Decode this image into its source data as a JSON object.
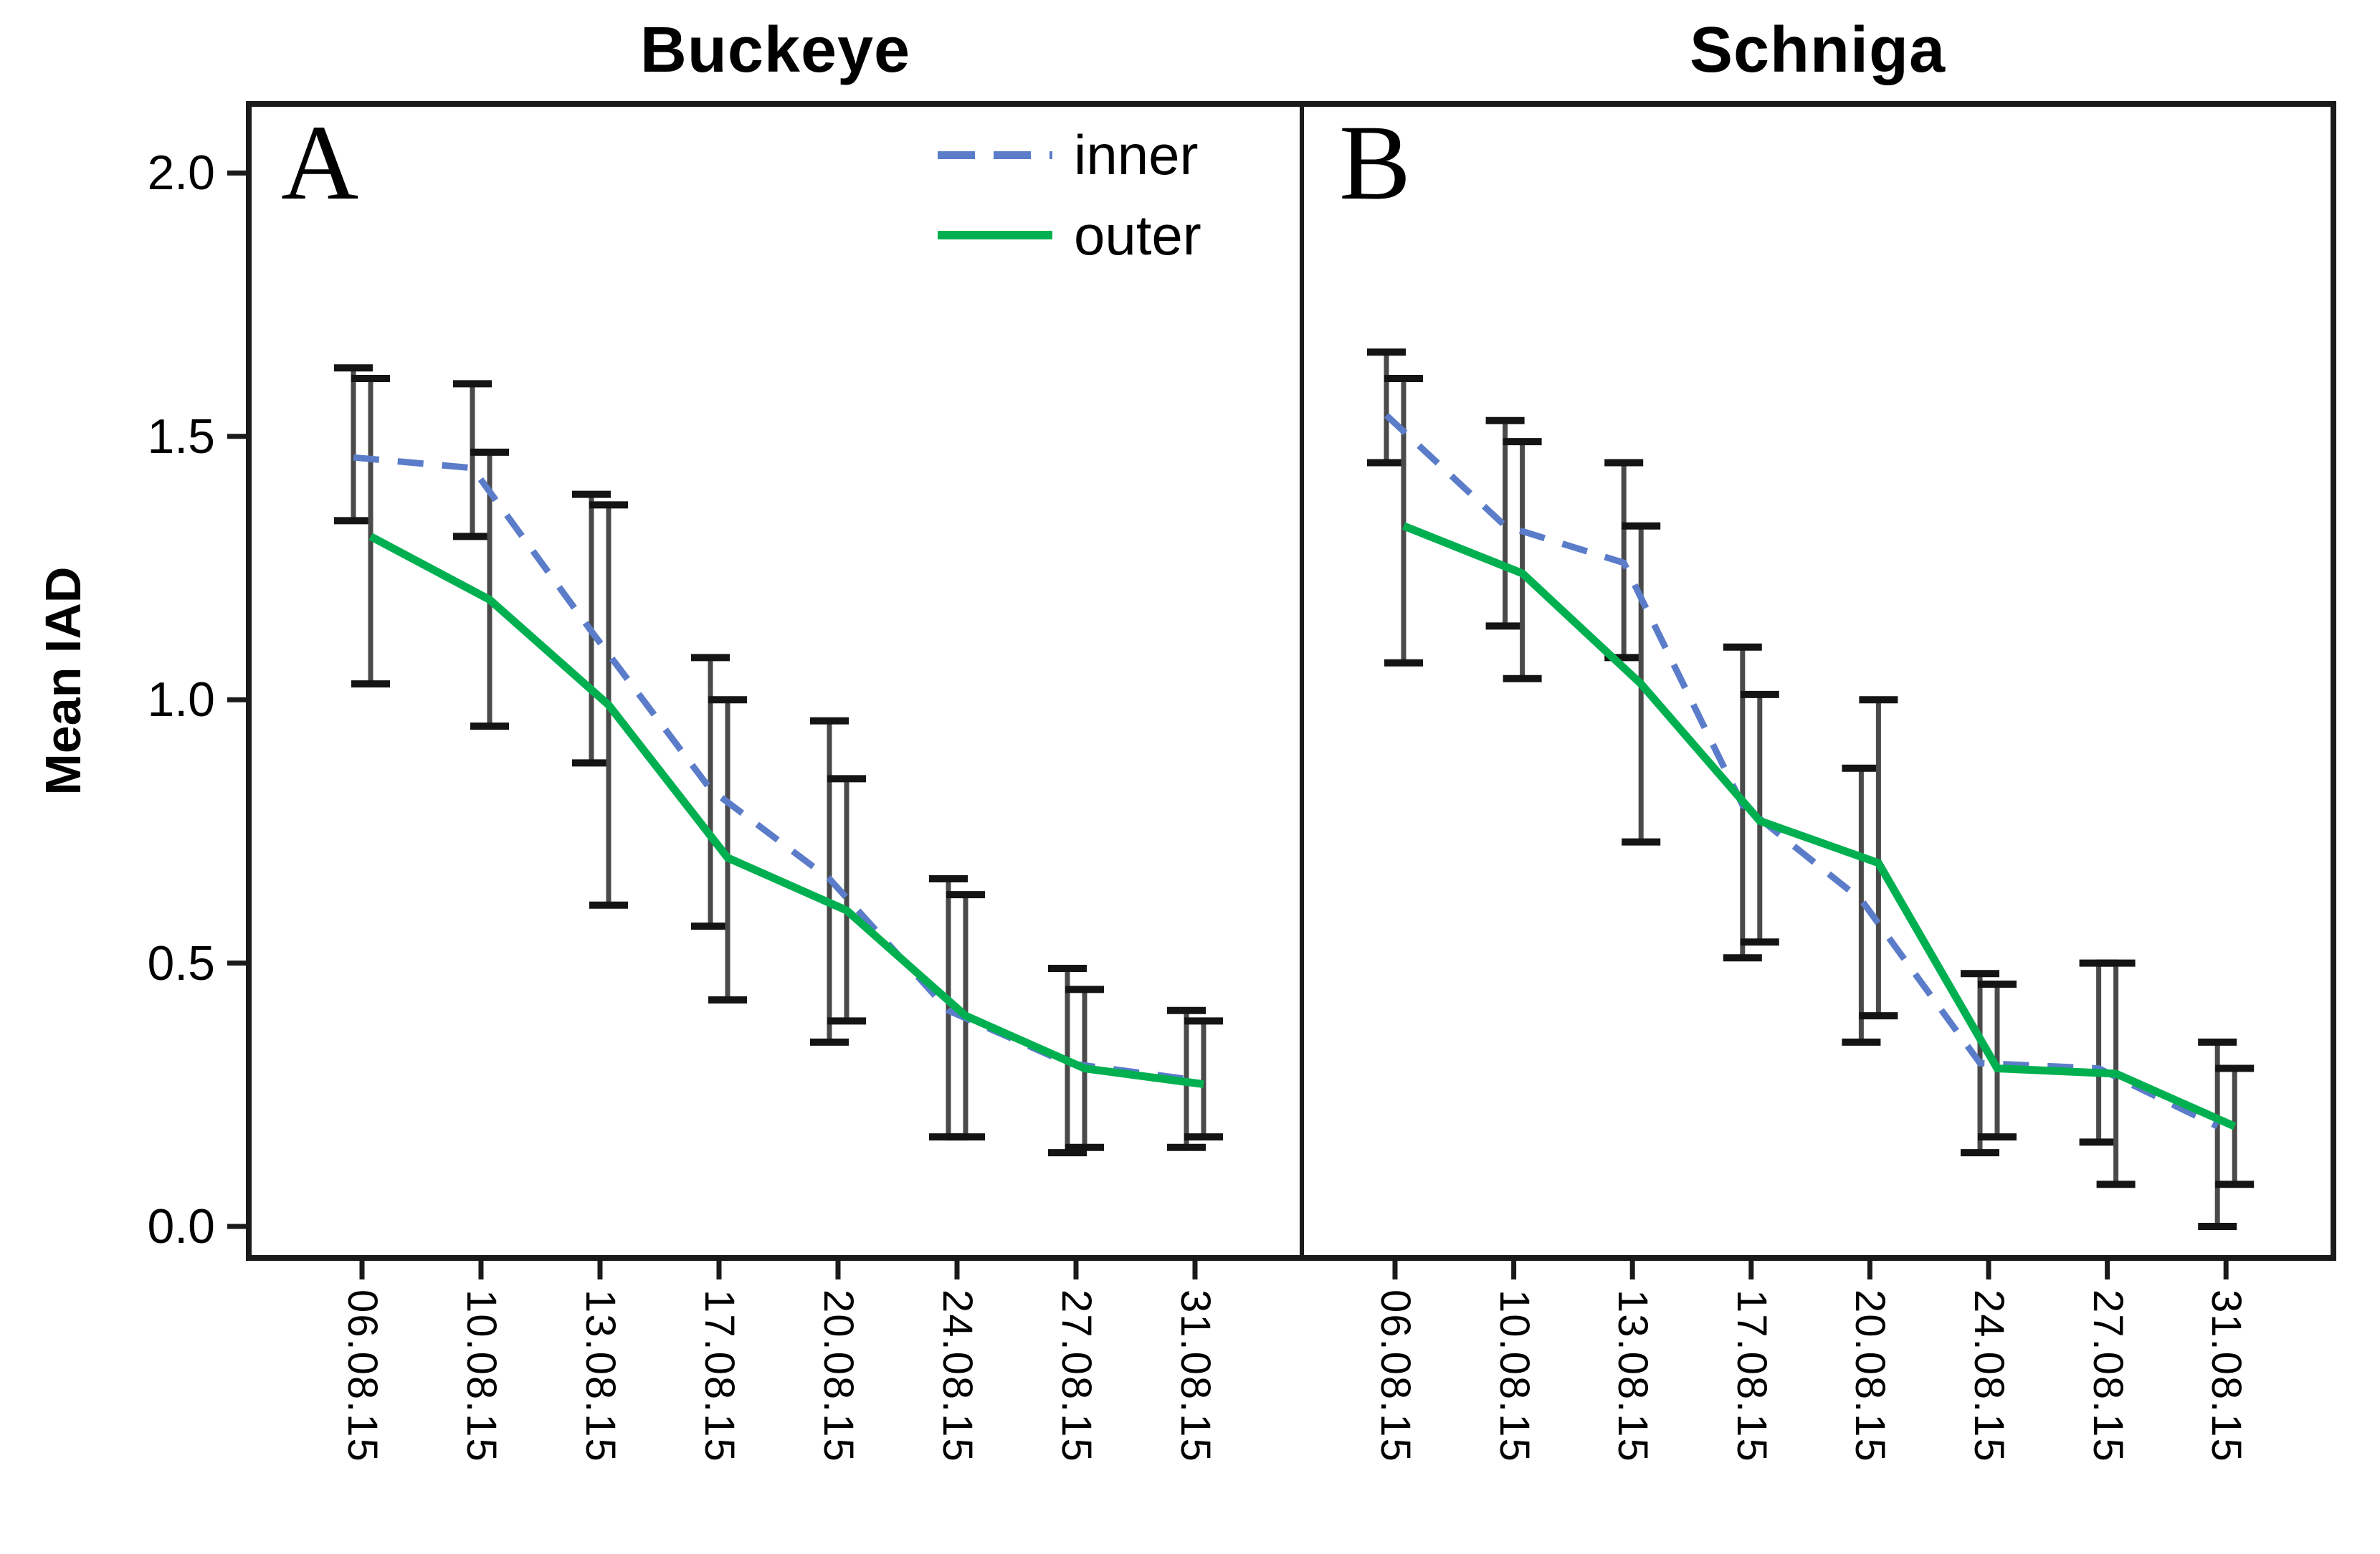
{
  "figure": {
    "y_label": "Mean IAD",
    "panel_a": {
      "letter": "A",
      "title": "Buckeye"
    },
    "panel_b": {
      "letter": "B",
      "title": "Schniga"
    }
  },
  "colors": {
    "inner": "#5b7cc9",
    "outer": "#00b050",
    "error_bar_stem": "#4a4a4a",
    "error_bar_cap": "#141414",
    "frame": "#1a1a1a"
  },
  "legend": {
    "items": [
      {
        "label": "inner",
        "style": "dashed",
        "color": "#5b7cc9"
      },
      {
        "label": "outer",
        "style": "solid",
        "color": "#00b050"
      }
    ]
  },
  "y_axis": {
    "title": "Mean IAD",
    "ticks": [
      2.0,
      1.5,
      1.0,
      0.5,
      0.0
    ],
    "labels": [
      "2.0",
      "1.5",
      "1.0",
      "0.5",
      "0.0"
    ]
  },
  "x_axis": {
    "tick_rotation_deg": 90,
    "categories": [
      "06.08.15",
      "10.08.15",
      "13.08.15",
      "17.08.15",
      "20.08.15",
      "24.08.15",
      "27.08.15",
      "31.08.15"
    ]
  },
  "chart_data": [
    {
      "type": "line",
      "panel": "A",
      "title": "Buckeye",
      "ylabel": "Mean IAD",
      "ylim": [
        0.0,
        2.0
      ],
      "grid": false,
      "legend_position": "top-right-of-panel-A",
      "categories": [
        "06.08.15",
        "10.08.15",
        "13.08.15",
        "17.08.15",
        "20.08.15",
        "24.08.15",
        "27.08.15",
        "31.08.15"
      ],
      "series": [
        {
          "name": "inner",
          "style": "dashed",
          "color": "#5b7cc9",
          "values": [
            1.46,
            1.44,
            1.13,
            0.83,
            0.66,
            0.41,
            0.31,
            0.28
          ],
          "ci_low": [
            1.34,
            1.31,
            0.88,
            0.57,
            0.35,
            0.17,
            0.14,
            0.15
          ],
          "ci_high": [
            1.63,
            1.6,
            1.39,
            1.08,
            0.96,
            0.66,
            0.49,
            0.41
          ]
        },
        {
          "name": "outer",
          "style": "solid",
          "color": "#00b050",
          "values": [
            1.31,
            1.19,
            0.99,
            0.7,
            0.6,
            0.4,
            0.3,
            0.27
          ],
          "ci_low": [
            1.03,
            0.95,
            0.61,
            0.43,
            0.39,
            0.17,
            0.15,
            0.17
          ],
          "ci_high": [
            1.61,
            1.47,
            1.37,
            1.0,
            0.85,
            0.63,
            0.45,
            0.39
          ]
        }
      ]
    },
    {
      "type": "line",
      "panel": "B",
      "title": "Schniga",
      "ylabel": "Mean IAD",
      "ylim": [
        0.0,
        2.0
      ],
      "grid": false,
      "categories": [
        "06.08.15",
        "10.08.15",
        "13.08.15",
        "17.08.15",
        "20.08.15",
        "24.08.15",
        "27.08.15",
        "31.08.15"
      ],
      "series": [
        {
          "name": "inner",
          "style": "dashed",
          "color": "#5b7cc9",
          "values": [
            1.54,
            1.33,
            1.26,
            0.8,
            0.62,
            0.31,
            0.3,
            0.19
          ],
          "ci_low": [
            1.45,
            1.14,
            1.08,
            0.51,
            0.35,
            0.14,
            0.16,
            0.0
          ],
          "ci_high": [
            1.66,
            1.53,
            1.45,
            1.1,
            0.87,
            0.48,
            0.5,
            0.35
          ]
        },
        {
          "name": "outer",
          "style": "solid",
          "color": "#00b050",
          "values": [
            1.33,
            1.24,
            1.03,
            0.77,
            0.69,
            0.3,
            0.29,
            0.19
          ],
          "ci_low": [
            1.07,
            1.04,
            0.73,
            0.54,
            0.4,
            0.17,
            0.08,
            0.08
          ],
          "ci_high": [
            1.61,
            1.49,
            1.33,
            1.01,
            1.0,
            0.46,
            0.5,
            0.3
          ]
        }
      ]
    }
  ]
}
